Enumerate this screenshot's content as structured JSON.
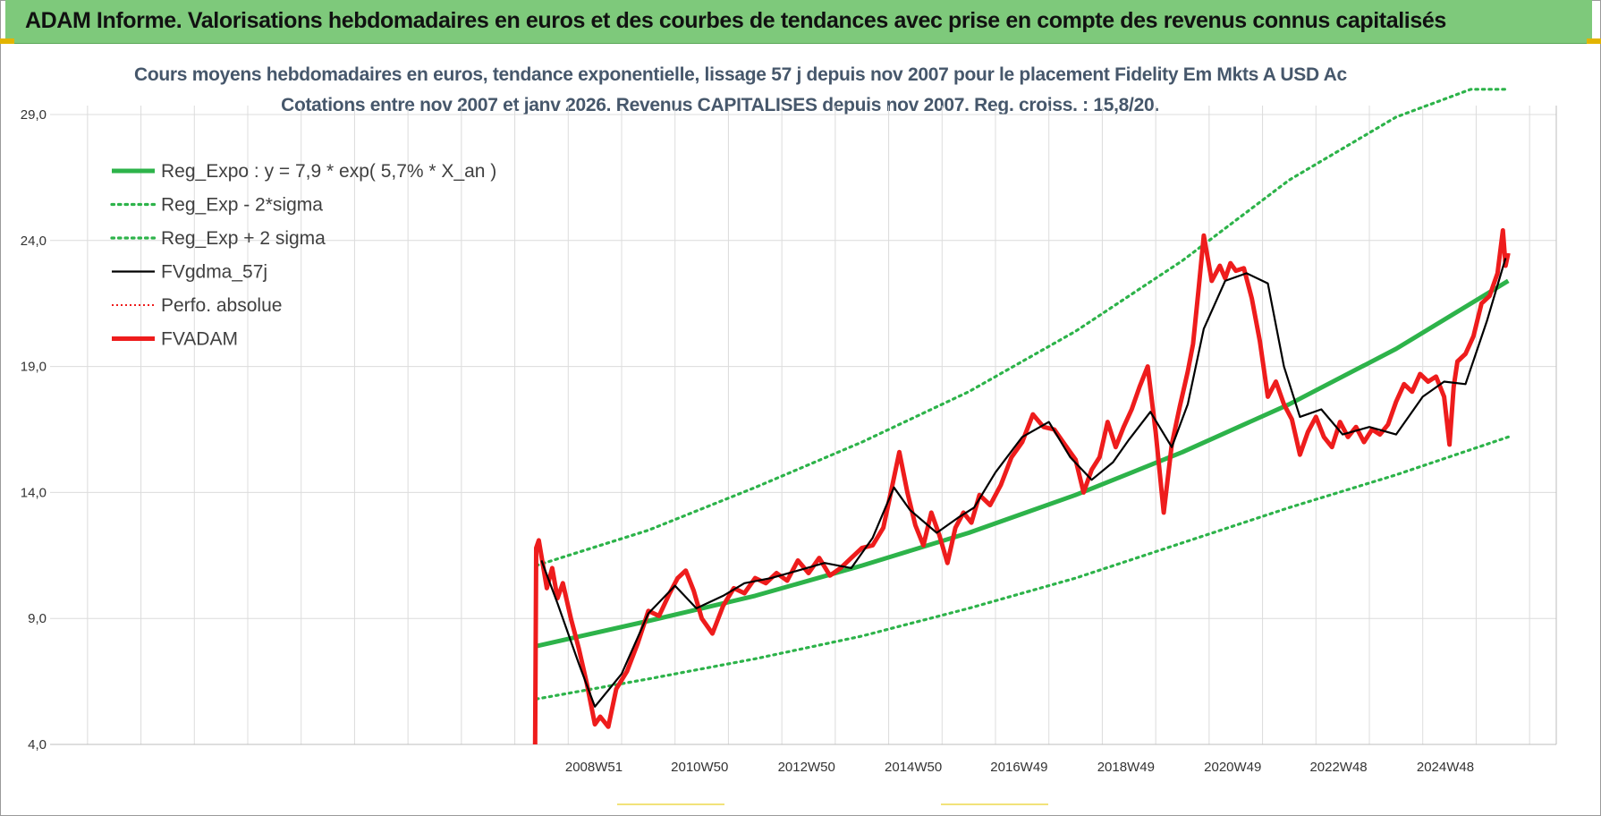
{
  "header": {
    "banner_title": "ADAM Informe. Valorisations hebdomadaires en euros et des courbes de tendances avec prise en compte des revenus connus capitalisés"
  },
  "colors": {
    "banner_bg": "#7ec97b",
    "trend_green": "#2db34a",
    "series_red": "#ee1c1c",
    "series_black": "#000000",
    "grid": "#dcdcdc"
  },
  "chart_data": {
    "type": "line",
    "title_line1": "Cours moyens hebdomadaires en euros, tendance exponentielle, lissage 57 j depuis nov 2007 pour le placement Fidelity Em Mkts A USD Ac",
    "title_line2": "Cotations entre nov 2007 et janv 2026. Revenus CAPITALISES depuis nov 2007. Reg. croiss. : 15,8/20.",
    "xlabel": "",
    "ylabel": "",
    "x_ticks": [
      "2008W51",
      "2010W50",
      "2012W50",
      "2014W50",
      "2016W49",
      "2018W49",
      "2020W49",
      "2022W48",
      "2024W48"
    ],
    "y_ticks": [
      "4,0",
      "9,0",
      "14,0",
      "19,0",
      "24,0",
      "29,0"
    ],
    "ylim": [
      4.0,
      29.0
    ],
    "xlim": [
      1999.0,
      2027.0
    ],
    "grid": true,
    "legend_position": "top-left",
    "legend": [
      {
        "label": "Reg_Expo : y = 7,9 * exp( 5,7% *  X_an )",
        "color": "#2db34a",
        "style": "solid-thick"
      },
      {
        "label": "Reg_Exp - 2*sigma",
        "color": "#2db34a",
        "style": "dotted"
      },
      {
        "label": "Reg_Exp + 2 sigma",
        "color": "#2db34a",
        "style": "dotted"
      },
      {
        "label": "FVgdma_57j",
        "color": "#000000",
        "style": "solid"
      },
      {
        "label": "Perfo. absolue",
        "color": "#ee1c1c",
        "style": "dotted-thin"
      },
      {
        "label": "FVADAM",
        "color": "#ee1c1c",
        "style": "solid-thick"
      }
    ],
    "series": [
      {
        "name": "Reg_Expo : y = 7,9 * exp( 5,7% *  X_an )",
        "x": [
          2007.9,
          2010.0,
          2012.0,
          2014.0,
          2016.0,
          2018.0,
          2020.0,
          2022.0,
          2024.0,
          2026.1
        ],
        "values": [
          7.9,
          8.9,
          9.9,
          11.1,
          12.4,
          13.9,
          15.6,
          17.5,
          19.7,
          22.4
        ]
      },
      {
        "name": "Reg_Exp - 2*sigma",
        "x": [
          2007.9,
          2010.0,
          2012.0,
          2014.0,
          2016.0,
          2018.0,
          2020.0,
          2022.0,
          2024.0,
          2026.1
        ],
        "values": [
          5.8,
          6.6,
          7.4,
          8.3,
          9.4,
          10.6,
          12.0,
          13.4,
          14.7,
          16.2
        ]
      },
      {
        "name": "Reg_Exp + 2 sigma",
        "x": [
          2007.9,
          2010.0,
          2012.0,
          2014.0,
          2016.0,
          2018.0,
          2020.0,
          2022.0,
          2024.0,
          2025.4,
          2026.1
        ],
        "values": [
          11.1,
          12.5,
          14.2,
          16.0,
          18.0,
          20.4,
          23.2,
          26.4,
          28.9,
          30.0,
          30.0
        ]
      },
      {
        "name": "FVgdma_57j",
        "x": [
          2008.0,
          2008.3,
          2008.7,
          2009.0,
          2009.5,
          2010.0,
          2010.5,
          2010.9,
          2011.4,
          2011.8,
          2012.3,
          2012.8,
          2013.3,
          2013.8,
          2014.2,
          2014.6,
          2014.9,
          2015.4,
          2015.8,
          2016.1,
          2016.5,
          2017.0,
          2017.5,
          2017.9,
          2018.3,
          2018.7,
          2019.0,
          2019.4,
          2019.8,
          2020.1,
          2020.4,
          2020.8,
          2021.2,
          2021.6,
          2021.9,
          2022.2,
          2022.6,
          2023.0,
          2023.5,
          2024.0,
          2024.5,
          2024.9,
          2025.3,
          2025.7,
          2026.05
        ],
        "values": [
          11.3,
          9.6,
          7.2,
          5.5,
          6.8,
          9.2,
          10.3,
          9.4,
          9.9,
          10.4,
          10.6,
          10.9,
          11.2,
          11.0,
          12.2,
          14.2,
          13.3,
          12.4,
          13.0,
          13.4,
          14.8,
          16.2,
          16.8,
          15.4,
          14.5,
          15.2,
          16.1,
          17.2,
          15.8,
          17.5,
          20.5,
          22.4,
          22.7,
          22.3,
          19.0,
          17.0,
          17.3,
          16.3,
          16.6,
          16.3,
          17.8,
          18.4,
          18.3,
          20.8,
          23.3
        ]
      },
      {
        "name": "FVADAM",
        "x": [
          2007.88,
          2007.9,
          2007.95,
          2008.1,
          2008.2,
          2008.3,
          2008.4,
          2008.55,
          2008.7,
          2008.85,
          2009.0,
          2009.1,
          2009.25,
          2009.4,
          2009.6,
          2009.8,
          2010.0,
          2010.2,
          2010.4,
          2010.55,
          2010.7,
          2010.85,
          2011.0,
          2011.2,
          2011.4,
          2011.6,
          2011.8,
          2012.0,
          2012.2,
          2012.4,
          2012.6,
          2012.8,
          2013.0,
          2013.2,
          2013.4,
          2013.6,
          2013.8,
          2014.0,
          2014.2,
          2014.4,
          2014.55,
          2014.7,
          2014.85,
          2015.0,
          2015.15,
          2015.3,
          2015.45,
          2015.6,
          2015.75,
          2015.9,
          2016.05,
          2016.2,
          2016.4,
          2016.6,
          2016.8,
          2017.0,
          2017.2,
          2017.4,
          2017.6,
          2017.8,
          2018.0,
          2018.15,
          2018.3,
          2018.45,
          2018.6,
          2018.75,
          2018.9,
          2019.05,
          2019.2,
          2019.35,
          2019.5,
          2019.65,
          2019.8,
          2019.95,
          2020.1,
          2020.2,
          2020.3,
          2020.4,
          2020.55,
          2020.7,
          2020.8,
          2020.9,
          2021.0,
          2021.15,
          2021.3,
          2021.45,
          2021.6,
          2021.75,
          2021.9,
          2022.05,
          2022.2,
          2022.35,
          2022.5,
          2022.65,
          2022.8,
          2022.95,
          2023.1,
          2023.25,
          2023.4,
          2023.55,
          2023.7,
          2023.85,
          2024.0,
          2024.15,
          2024.3,
          2024.45,
          2024.6,
          2024.75,
          2024.9,
          2025.0,
          2025.08,
          2025.15,
          2025.3,
          2025.45,
          2025.6,
          2025.75,
          2025.9,
          2026.0,
          2026.05,
          2026.1
        ],
        "values": [
          4.0,
          11.8,
          12.1,
          10.2,
          11.0,
          9.8,
          10.4,
          9.0,
          7.8,
          6.4,
          4.8,
          5.1,
          4.7,
          6.2,
          6.9,
          8.0,
          9.3,
          9.1,
          10.0,
          10.6,
          10.9,
          10.1,
          9.0,
          8.4,
          9.5,
          10.2,
          10.0,
          10.6,
          10.4,
          10.8,
          10.5,
          11.3,
          10.8,
          11.4,
          10.7,
          11.0,
          11.4,
          11.8,
          11.9,
          12.6,
          14.1,
          15.6,
          14.0,
          12.7,
          11.9,
          13.2,
          12.3,
          11.2,
          12.6,
          13.2,
          12.8,
          13.9,
          13.5,
          14.3,
          15.4,
          16.0,
          17.1,
          16.6,
          16.5,
          15.9,
          15.3,
          14.0,
          14.9,
          15.4,
          16.8,
          15.8,
          16.6,
          17.3,
          18.2,
          19.0,
          16.4,
          13.2,
          15.9,
          17.4,
          18.8,
          19.9,
          22.0,
          24.2,
          22.4,
          23.0,
          22.5,
          23.1,
          22.8,
          22.9,
          21.7,
          20.0,
          17.8,
          18.4,
          17.5,
          16.9,
          15.5,
          16.4,
          17.0,
          16.2,
          15.8,
          16.8,
          16.2,
          16.6,
          16.0,
          16.5,
          16.3,
          16.7,
          17.6,
          18.3,
          18.0,
          18.7,
          18.4,
          18.6,
          17.8,
          15.9,
          18.2,
          19.2,
          19.5,
          20.2,
          21.5,
          21.8,
          22.7,
          24.4,
          23.0,
          23.5
        ]
      }
    ]
  }
}
